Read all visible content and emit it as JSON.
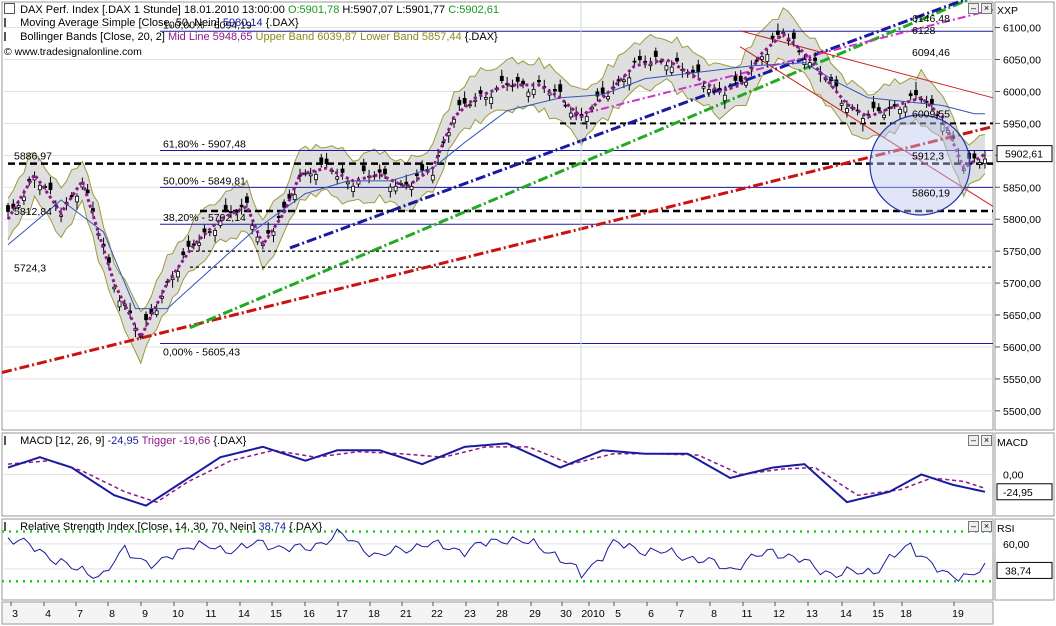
{
  "colors": {
    "candle": "#000000",
    "sma": "#8a1a8a",
    "bollinger": "#9b9b3a",
    "bbfill": "#d9d9d9",
    "blue": "#1a1aa0",
    "red": "#cc1111",
    "green": "#22aa22",
    "macd": "#1a1aa0",
    "trigger": "#8a1a8a",
    "rsi": "#1a1aa0",
    "rsiband": "#22cc22"
  },
  "header": {
    "title": "DAX Perf. Index [.DAX  1 Stunde]",
    "datetime": "18.01.2010 13:00:00",
    "ohlc": {
      "o": "O:5901,78",
      "h": "H:5907,07",
      "l": "L:5901,77",
      "c": "C:5902,61"
    },
    "sma_label": "Moving Average Simple [Close, 50, Nein]",
    "sma_value": "5980,14",
    "sma_sym": "{.DAX}",
    "bb_label": "Bollinger Bands [Close, 20, 2]",
    "bb_mid": "Mid Line 5948,65",
    "bb_upper": "Upper Band 6039,87",
    "bb_lower": "Lower Band 5857,44",
    "bb_sym": "{.DAX}",
    "source": "© www.tradesignalonline.com"
  },
  "macd_header": {
    "label": "MACD [12, 26, 9]",
    "value": "-24,95",
    "trigger": "Trigger -19,66",
    "sym": "{.DAX}"
  },
  "rsi_header": {
    "label": "Relative Strength Index [Close, 14, 30, 70, Nein]",
    "value": "38,74",
    "sym": "{.DAX}"
  },
  "axis_titles": {
    "price": "XXP",
    "macd": "MACD",
    "rsi": "RSI"
  },
  "badges": {
    "price": "5902,61",
    "macd": "-24,95",
    "rsi": "38,74"
  },
  "chart_data": {
    "type": "line",
    "ylim": [
      5470,
      6140
    ],
    "price_ticks": [
      "6100,00",
      "6050,00",
      "6000,00",
      "5950,00",
      "5900,00",
      "5850,00",
      "5800,00",
      "5750,00",
      "5700,00",
      "5650,00",
      "5600,00",
      "5550,00",
      "5500,00"
    ],
    "price_tick_values": [
      6100,
      6050,
      6000,
      5950,
      5900,
      5850,
      5800,
      5750,
      5700,
      5650,
      5600,
      5550,
      5500
    ],
    "macd_ticks": [
      "0,00"
    ],
    "rsi_ticks": [
      "60,00",
      "40,00"
    ],
    "x_labels": [
      "3",
      "4",
      "7",
      "8",
      "9",
      "10",
      "11",
      "14",
      "15",
      "16",
      "17",
      "18",
      "21",
      "22",
      "23",
      "28",
      "29",
      "30",
      "2010",
      "5",
      "6",
      "7",
      "8",
      "11",
      "12",
      "13",
      "14",
      "15",
      "18",
      "19"
    ],
    "fib_levels": [
      {
        "label": "100,00% - 6094,19",
        "value": 6094.19
      },
      {
        "label": "61,80% - 5907,48",
        "value": 5907.48
      },
      {
        "label": "50,00% - 5849,81",
        "value": 5849.81
      },
      {
        "label": "38,20% - 5792,14",
        "value": 5792.14
      },
      {
        "label": "0,00% - 5605,43",
        "value": 5605.43
      }
    ],
    "annotations": [
      {
        "label": "5886,97",
        "value": 5886.97
      },
      {
        "label": "5812,84",
        "value": 5812.84
      },
      {
        "label": "5724,3",
        "value": 5724.3
      },
      {
        "label": "6146,48",
        "value": 6146.48
      },
      {
        "label": "6128",
        "value": 6128
      },
      {
        "label": "6094,46",
        "value": 6094.46
      },
      {
        "label": "6009,55",
        "value": 6009.55
      },
      {
        "label": "5912,3",
        "value": 5912.3
      },
      {
        "label": "5860,19",
        "value": 5860.19
      }
    ],
    "close_keypoints": [
      [
        0,
        5800
      ],
      [
        5,
        5870
      ],
      [
        10,
        5810
      ],
      [
        14,
        5860
      ],
      [
        20,
        5700
      ],
      [
        25,
        5615
      ],
      [
        30,
        5700
      ],
      [
        35,
        5760
      ],
      [
        40,
        5800
      ],
      [
        45,
        5820
      ],
      [
        48,
        5760
      ],
      [
        52,
        5810
      ],
      [
        55,
        5870
      ],
      [
        60,
        5880
      ],
      [
        65,
        5860
      ],
      [
        70,
        5870
      ],
      [
        75,
        5850
      ],
      [
        80,
        5880
      ],
      [
        84,
        5960
      ],
      [
        88,
        5990
      ],
      [
        94,
        6010
      ],
      [
        100,
        6010
      ],
      [
        104,
        5990
      ],
      [
        108,
        5960
      ],
      [
        112,
        5990
      ],
      [
        118,
        6040
      ],
      [
        124,
        6050
      ],
      [
        128,
        6030
      ],
      [
        134,
        6000
      ],
      [
        138,
        6010
      ],
      [
        142,
        6060
      ],
      [
        146,
        6090
      ],
      [
        150,
        6060
      ],
      [
        154,
        6020
      ],
      [
        158,
        5980
      ],
      [
        162,
        5960
      ],
      [
        168,
        5980
      ],
      [
        172,
        5990
      ],
      [
        176,
        5960
      ],
      [
        180,
        5880
      ],
      [
        184,
        5902
      ]
    ],
    "sma_keypoints": [
      [
        0,
        5760
      ],
      [
        10,
        5830
      ],
      [
        18,
        5780
      ],
      [
        24,
        5660
      ],
      [
        30,
        5660
      ],
      [
        38,
        5720
      ],
      [
        46,
        5780
      ],
      [
        56,
        5840
      ],
      [
        64,
        5860
      ],
      [
        72,
        5860
      ],
      [
        80,
        5880
      ],
      [
        86,
        5920
      ],
      [
        94,
        5970
      ],
      [
        104,
        5990
      ],
      [
        112,
        5995
      ],
      [
        120,
        6020
      ],
      [
        130,
        6030
      ],
      [
        140,
        6040
      ],
      [
        150,
        6045
      ],
      [
        156,
        6015
      ],
      [
        162,
        5990
      ],
      [
        168,
        5985
      ],
      [
        176,
        5978
      ],
      [
        182,
        5965
      ]
    ],
    "macd_keypoints": [
      [
        0,
        10
      ],
      [
        6,
        25
      ],
      [
        12,
        10
      ],
      [
        20,
        -30
      ],
      [
        26,
        -45
      ],
      [
        32,
        -15
      ],
      [
        40,
        25
      ],
      [
        48,
        40
      ],
      [
        56,
        20
      ],
      [
        62,
        35
      ],
      [
        70,
        35
      ],
      [
        78,
        15
      ],
      [
        86,
        40
      ],
      [
        94,
        45
      ],
      [
        104,
        10
      ],
      [
        112,
        35
      ],
      [
        120,
        30
      ],
      [
        128,
        30
      ],
      [
        136,
        -5
      ],
      [
        144,
        10
      ],
      [
        150,
        15
      ],
      [
        158,
        -40
      ],
      [
        166,
        -25
      ],
      [
        172,
        0
      ],
      [
        178,
        -15
      ],
      [
        184,
        -25
      ]
    ],
    "trigger_keypoints": [
      [
        0,
        15
      ],
      [
        8,
        20
      ],
      [
        14,
        5
      ],
      [
        22,
        -25
      ],
      [
        28,
        -40
      ],
      [
        34,
        -10
      ],
      [
        42,
        20
      ],
      [
        50,
        35
      ],
      [
        58,
        25
      ],
      [
        66,
        33
      ],
      [
        74,
        30
      ],
      [
        82,
        25
      ],
      [
        90,
        40
      ],
      [
        98,
        40
      ],
      [
        106,
        15
      ],
      [
        114,
        30
      ],
      [
        122,
        30
      ],
      [
        130,
        28
      ],
      [
        138,
        0
      ],
      [
        146,
        8
      ],
      [
        152,
        10
      ],
      [
        160,
        -30
      ],
      [
        168,
        -22
      ],
      [
        174,
        -5
      ],
      [
        180,
        -10
      ],
      [
        184,
        -20
      ]
    ],
    "rsi_keypoints": [
      [
        0,
        65
      ],
      [
        6,
        55
      ],
      [
        12,
        40
      ],
      [
        18,
        35
      ],
      [
        22,
        55
      ],
      [
        28,
        42
      ],
      [
        34,
        60
      ],
      [
        40,
        55
      ],
      [
        48,
        60
      ],
      [
        56,
        55
      ],
      [
        62,
        68
      ],
      [
        70,
        50
      ],
      [
        78,
        60
      ],
      [
        86,
        55
      ],
      [
        94,
        65
      ],
      [
        102,
        55
      ],
      [
        108,
        35
      ],
      [
        114,
        60
      ],
      [
        120,
        55
      ],
      [
        128,
        50
      ],
      [
        136,
        40
      ],
      [
        144,
        55
      ],
      [
        150,
        45
      ],
      [
        156,
        35
      ],
      [
        164,
        40
      ],
      [
        170,
        60
      ],
      [
        176,
        35
      ],
      [
        180,
        35
      ],
      [
        184,
        38.74
      ]
    ],
    "rsi_bands": [
      70,
      30
    ]
  }
}
